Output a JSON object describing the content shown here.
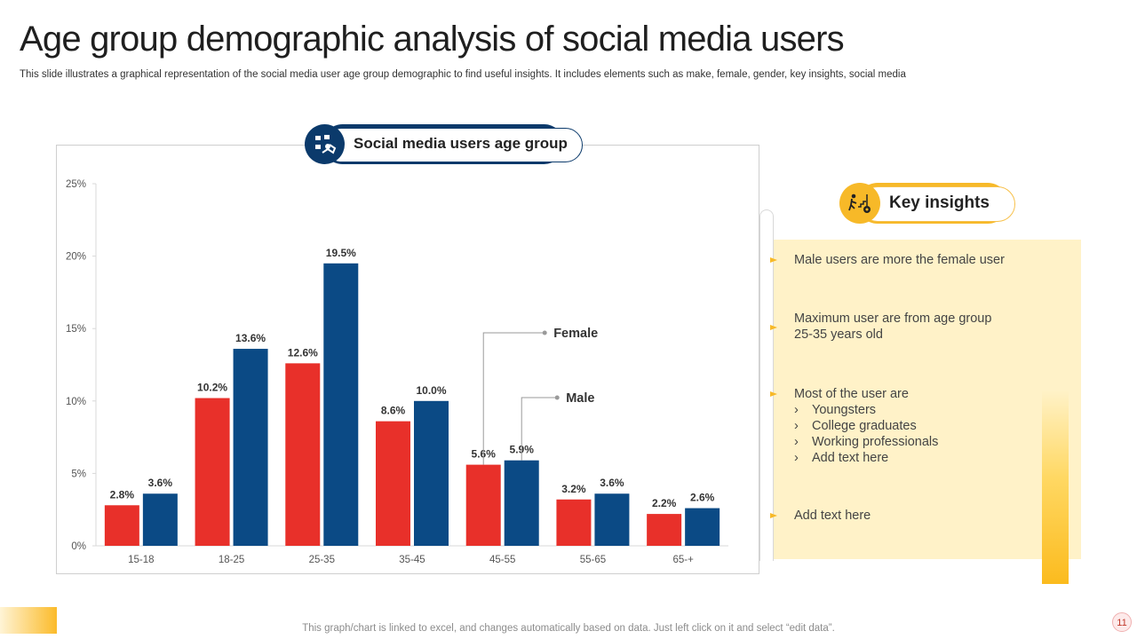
{
  "header": {
    "title": "Age group demographic analysis of social media users",
    "subtitle": "This slide illustrates a graphical representation of the social media user age group demographic to find useful insights. It includes elements such as make, female, gender, key insights, social media"
  },
  "chart_header": {
    "label": "Social media users age group",
    "icon": "people-network-icon"
  },
  "chart_data": {
    "type": "bar",
    "title": "Social media users age group",
    "categories": [
      "15-18",
      "18-25",
      "25-35",
      "35-45",
      "45-55",
      "55-65",
      "65-+"
    ],
    "series": [
      {
        "name": "Female",
        "color": "#e8302a",
        "values": [
          2.8,
          10.2,
          12.6,
          8.6,
          5.6,
          3.2,
          2.2
        ],
        "labels": [
          "2.8%",
          "10.2%",
          "12.6%",
          "8.6%",
          "5.6%",
          "3.2%",
          "2.2%"
        ]
      },
      {
        "name": "Male",
        "color": "#0b4a85",
        "values": [
          3.6,
          13.6,
          19.5,
          10.0,
          5.9,
          3.6,
          2.6
        ],
        "labels": [
          "3.6%",
          "13.6%",
          "19.5%",
          "10.0%",
          "5.9%",
          "3.6%",
          "2.6%"
        ]
      }
    ],
    "ylim": [
      0,
      25
    ],
    "yticks": [
      0,
      5,
      10,
      15,
      20,
      25
    ],
    "ytick_labels": [
      "0%",
      "5%",
      "10%",
      "15%",
      "20%",
      "25%"
    ],
    "xlabel": "",
    "ylabel": "",
    "legend": "callouts at 45-55 group"
  },
  "key_insights": {
    "title": "Key insights",
    "icon": "person-stairs-target-icon",
    "items": [
      {
        "text": "Male  users are more the female user"
      },
      {
        "text": "Maximum user are from age group",
        "text2": "25-35 years old"
      },
      {
        "text": "Most of the user are",
        "subitems": [
          "Youngsters",
          "College graduates",
          "Working professionals",
          "Add text here"
        ]
      },
      {
        "text": "Add text here"
      }
    ],
    "chevron": "›"
  },
  "footer": {
    "note": "This graph/chart is linked to excel,  and changes automatically based on data. Just left click on it and select “edit data”.",
    "page_number": "11"
  },
  "colors": {
    "accent_yellow": "#f7b928",
    "navy": "#0b3a6b",
    "red": "#e8302a",
    "blue": "#0b4a85"
  }
}
